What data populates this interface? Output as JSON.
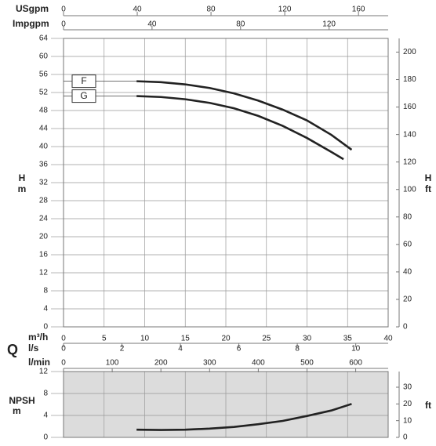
{
  "chart_data": [
    {
      "type": "line",
      "ylabel": {
        "symbol": "H",
        "unit": "m"
      },
      "y2label": {
        "symbol": "H",
        "unit": "ft"
      },
      "xlabel": {
        "symbol": "Q",
        "unit": "m³/h"
      },
      "xlim": [
        0,
        40
      ],
      "xticks": [
        0,
        5,
        10,
        15,
        20,
        25,
        30,
        35,
        40
      ],
      "ylim": [
        0,
        64
      ],
      "yticks": [
        0,
        4,
        8,
        12,
        16,
        20,
        24,
        28,
        32,
        36,
        40,
        44,
        48,
        52,
        56,
        60,
        64
      ],
      "y2lim": [
        0,
        209.97
      ],
      "y2ticks": [
        0,
        20,
        40,
        60,
        80,
        100,
        120,
        140,
        160,
        180,
        200
      ],
      "grid": true,
      "x_axes": [
        {
          "label": "USgpm",
          "lim": [
            0,
            176.1
          ],
          "ticks": [
            0,
            40,
            80,
            120,
            160
          ]
        },
        {
          "label": "Impgpm",
          "lim": [
            0,
            146.7
          ],
          "ticks": [
            0,
            40,
            80,
            120
          ]
        },
        {
          "label": "l/s",
          "lim": [
            0,
            11.11
          ],
          "ticks": [
            0,
            2,
            4,
            6,
            8,
            10
          ]
        },
        {
          "label": "l/min",
          "lim": [
            0,
            666.7
          ],
          "ticks": [
            0,
            100,
            200,
            300,
            400,
            500,
            600
          ]
        }
      ],
      "series": [
        {
          "name": "F",
          "color": "#222222",
          "x": [
            9,
            12,
            15,
            18,
            21,
            24,
            27,
            30,
            33,
            35.5
          ],
          "values": [
            54.5,
            54.3,
            53.8,
            53.0,
            51.8,
            50.2,
            48.2,
            45.8,
            42.6,
            39.3
          ]
        },
        {
          "name": "G",
          "color": "#222222",
          "x": [
            9,
            12,
            15,
            18,
            21,
            24,
            27,
            30,
            33,
            34.5
          ],
          "values": [
            51.2,
            51.0,
            50.5,
            49.7,
            48.5,
            46.8,
            44.6,
            41.9,
            38.8,
            37.2
          ]
        }
      ]
    },
    {
      "type": "line",
      "ylabel": {
        "symbol": "NPSH",
        "unit": "m"
      },
      "y2label": "ft",
      "xlim": [
        0,
        40
      ],
      "ylim": [
        0,
        12
      ],
      "yticks": [
        0,
        4,
        8,
        12
      ],
      "y2lim": [
        0,
        39.37
      ],
      "y2ticks": [
        0,
        10,
        20,
        30
      ],
      "background": "#dcdcdc",
      "series": [
        {
          "color": "#222222",
          "x": [
            9,
            12,
            15,
            18,
            21,
            24,
            27,
            30,
            33,
            35.5
          ],
          "values": [
            1.4,
            1.35,
            1.4,
            1.6,
            1.9,
            2.4,
            3.0,
            3.9,
            4.9,
            6.1
          ]
        }
      ]
    }
  ]
}
